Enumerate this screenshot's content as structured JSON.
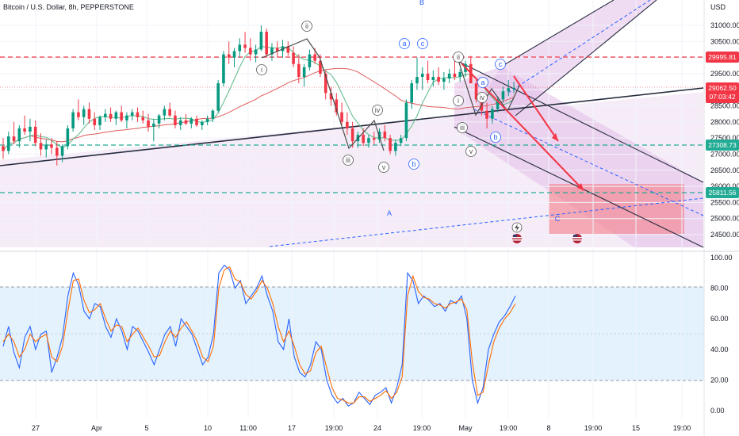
{
  "header": {
    "symbol_title": "Bitcoin / U.S. Dollar, 8h, PEPPERSTONE",
    "currency": "USD"
  },
  "chart_data": [
    {
      "type": "line",
      "ylim": [
        24100,
        31700
      ],
      "y_ticks": [
        24500,
        25000,
        25500,
        26000,
        26500,
        27000,
        27500,
        28000,
        28500,
        29000,
        29500,
        30000,
        30500,
        31000
      ],
      "x_ticks": [
        "27",
        "Apr",
        "5",
        "10",
        "11:00",
        "17",
        "19:00",
        "24",
        "19:00",
        "May",
        "19:00",
        "8",
        "19:00",
        "15",
        "19:00"
      ],
      "candles_approx": [
        [
          27250,
          27500,
          26850,
          27100
        ],
        [
          27100,
          27700,
          27000,
          27550
        ],
        [
          27550,
          28000,
          27300,
          27400
        ],
        [
          27400,
          27900,
          27200,
          27800
        ],
        [
          27800,
          28200,
          27600,
          27700
        ],
        [
          27700,
          28100,
          27400,
          27850
        ],
        [
          27850,
          28050,
          27250,
          27350
        ],
        [
          27350,
          27650,
          26950,
          27150
        ],
        [
          27150,
          27450,
          26900,
          27300
        ],
        [
          27300,
          27500,
          27000,
          27200
        ],
        [
          27200,
          27400,
          26650,
          26950
        ],
        [
          26950,
          27300,
          26750,
          27250
        ],
        [
          27250,
          27900,
          27150,
          27800
        ],
        [
          27800,
          28400,
          27700,
          28300
        ],
        [
          28300,
          28700,
          28050,
          28150
        ],
        [
          28150,
          28500,
          27900,
          28400
        ],
        [
          28400,
          28600,
          27950,
          28100
        ],
        [
          28100,
          28300,
          27750,
          27900
        ],
        [
          27900,
          28200,
          27750,
          28150
        ],
        [
          28150,
          28400,
          28000,
          28250
        ],
        [
          28250,
          28450,
          28000,
          28100
        ],
        [
          28100,
          28350,
          27900,
          28300
        ],
        [
          28300,
          28500,
          28000,
          28050
        ],
        [
          28050,
          28300,
          27800,
          28200
        ],
        [
          28200,
          28400,
          28050,
          28300
        ],
        [
          28300,
          28450,
          28000,
          28150
        ],
        [
          28150,
          28350,
          27950,
          28050
        ],
        [
          28050,
          28250,
          27700,
          27850
        ],
        [
          27850,
          28100,
          27400,
          27950
        ],
        [
          27950,
          28250,
          27800,
          28200
        ],
        [
          28200,
          28500,
          28050,
          28400
        ],
        [
          28400,
          28600,
          28150,
          28200
        ],
        [
          28200,
          28350,
          27800,
          27900
        ],
        [
          27900,
          28150,
          27750,
          28050
        ],
        [
          28050,
          28250,
          27900,
          27950
        ],
        [
          27950,
          28150,
          27800,
          28100
        ],
        [
          28100,
          28200,
          27850,
          27900
        ],
        [
          27900,
          28050,
          27750,
          28000
        ],
        [
          28000,
          28200,
          27900,
          28100
        ],
        [
          28100,
          28400,
          28000,
          28350
        ],
        [
          28350,
          29300,
          28300,
          29200
        ],
        [
          29200,
          30200,
          29100,
          30100
        ],
        [
          30100,
          30500,
          29800,
          30000
        ],
        [
          30000,
          30300,
          29700,
          30200
        ],
        [
          30200,
          30600,
          30000,
          30400
        ],
        [
          30400,
          30800,
          30150,
          30300
        ],
        [
          30300,
          30600,
          29900,
          30100
        ],
        [
          30100,
          30400,
          29850,
          30250
        ],
        [
          30250,
          31000,
          30200,
          30800
        ],
        [
          30800,
          30900,
          30000,
          30100
        ],
        [
          30100,
          30450,
          29900,
          30300
        ],
        [
          30300,
          30500,
          30000,
          30200
        ],
        [
          30200,
          30550,
          30000,
          30350
        ],
        [
          30350,
          30500,
          30050,
          30150
        ],
        [
          30150,
          30350,
          29700,
          29800
        ],
        [
          29800,
          30100,
          29200,
          29400
        ],
        [
          29400,
          29800,
          29100,
          29700
        ],
        [
          29700,
          30250,
          29600,
          30100
        ],
        [
          30100,
          30300,
          29800,
          29900
        ],
        [
          29900,
          30100,
          29400,
          29500
        ],
        [
          29500,
          29600,
          28700,
          28900
        ],
        [
          28900,
          29100,
          28500,
          28700
        ],
        [
          28700,
          28900,
          28200,
          28300
        ],
        [
          28300,
          28600,
          27900,
          28000
        ],
        [
          28000,
          28300,
          27600,
          27800
        ],
        [
          27800,
          28000,
          27200,
          27400
        ],
        [
          27400,
          27700,
          27200,
          27600
        ],
        [
          27600,
          27800,
          27250,
          27350
        ],
        [
          27350,
          27600,
          27200,
          27500
        ],
        [
          27500,
          27700,
          27300,
          27450
        ],
        [
          27450,
          27800,
          27350,
          27700
        ],
        [
          27700,
          27900,
          27400,
          27500
        ],
        [
          27500,
          27600,
          27000,
          27100
        ],
        [
          27100,
          27450,
          26950,
          27350
        ],
        [
          27350,
          27600,
          27250,
          27500
        ],
        [
          27500,
          28700,
          27400,
          28600
        ],
        [
          28600,
          29300,
          28400,
          29200
        ],
        [
          29200,
          30000,
          29000,
          29400
        ],
        [
          29400,
          29700,
          29000,
          29500
        ],
        [
          29500,
          29900,
          29200,
          29300
        ],
        [
          29300,
          29600,
          29100,
          29400
        ],
        [
          29400,
          29700,
          29150,
          29250
        ],
        [
          29250,
          29550,
          29000,
          29350
        ],
        [
          29350,
          29650,
          29200,
          29500
        ],
        [
          29500,
          29900,
          29300,
          29400
        ],
        [
          29400,
          29650,
          29250,
          29550
        ],
        [
          29550,
          29900,
          29400,
          29800
        ],
        [
          29800,
          30050,
          29500,
          29200
        ],
        [
          29200,
          29300,
          28600,
          28700
        ],
        [
          28700,
          28900,
          28200,
          28350
        ],
        [
          28350,
          28600,
          27800,
          28100
        ],
        [
          28100,
          28500,
          27950,
          28400
        ],
        [
          28400,
          28800,
          28300,
          28700
        ],
        [
          28700,
          29100,
          28600,
          28950
        ],
        [
          28950,
          29300,
          28800,
          29050
        ],
        [
          29050,
          29250,
          28900,
          29062
        ]
      ]
    },
    {
      "type": "line",
      "ylim": [
        0,
        100
      ],
      "y_ticks": [
        0,
        20,
        40,
        60,
        80,
        100
      ],
      "overbought": 80,
      "oversold": 20,
      "series": [
        {
          "values": [
            42,
            55,
            38,
            28,
            48,
            55,
            40,
            50,
            52,
            25,
            35,
            48,
            75,
            90,
            82,
            65,
            60,
            70,
            68,
            55,
            48,
            60,
            52,
            40,
            55,
            52,
            45,
            38,
            30,
            40,
            50,
            55,
            42,
            60,
            55,
            50,
            40,
            30,
            35,
            50,
            90,
            95,
            92,
            80,
            85,
            70,
            75,
            80,
            88,
            75,
            65,
            45,
            40,
            60,
            35,
            25,
            22,
            30,
            45,
            40,
            20,
            10,
            5,
            8,
            3,
            5,
            12,
            8,
            4,
            10,
            12,
            15,
            5,
            15,
            30,
            90,
            85,
            70,
            75,
            72,
            68,
            70,
            65,
            72,
            70,
            75,
            60,
            20,
            5,
            15,
            40,
            50,
            58,
            62,
            68,
            75
          ]
        },
        {
          "values": [
            45,
            50,
            45,
            35,
            40,
            50,
            45,
            48,
            50,
            35,
            32,
            42,
            65,
            85,
            86,
            72,
            64,
            66,
            70,
            60,
            52,
            56,
            55,
            45,
            50,
            54,
            48,
            42,
            35,
            36,
            45,
            52,
            48,
            54,
            58,
            52,
            45,
            35,
            32,
            42,
            80,
            92,
            94,
            86,
            84,
            76,
            73,
            78,
            85,
            80,
            70,
            55,
            45,
            52,
            42,
            30,
            24,
            26,
            38,
            42,
            28,
            15,
            8,
            7,
            5,
            5,
            9,
            9,
            6,
            8,
            10,
            13,
            8,
            12,
            22,
            75,
            88,
            78,
            74,
            73,
            70,
            69,
            67,
            70,
            71,
            73,
            66,
            32,
            10,
            12,
            30,
            45,
            54,
            60,
            64,
            70
          ]
        }
      ]
    }
  ],
  "right_axis": {
    "ticks_main": [
      "31000.00",
      "30500.00",
      "30000.00",
      "29500.00",
      "29000.00",
      "28500.00",
      "28000.00",
      "27500.00",
      "27000.00",
      "26500.00",
      "26000.00",
      "25500.00",
      "25000.00",
      "24500.00"
    ],
    "ticks_osc": [
      "100.00",
      "80.00",
      "60.00",
      "40.00",
      "20.00",
      "0.00"
    ]
  },
  "price_tags": {
    "resistance": {
      "label": "29995.81",
      "color": "#f23645"
    },
    "current": {
      "label": "29062.50",
      "countdown": "07:03:42",
      "color": "#f23645"
    },
    "support1": {
      "label": "27308.73",
      "color": "#22ab94"
    },
    "support2": {
      "label": "25811.56",
      "color": "#22ab94"
    }
  },
  "waves": {
    "i_1": "i",
    "ii_1": "ii",
    "iii_1": "iii",
    "iv_1": "iv",
    "v_1": "v",
    "a_1": "a",
    "b_1": "b",
    "c_1": "c",
    "i_2": "i",
    "ii_2": "ii",
    "iii_2": "iii",
    "iv_2": "iv",
    "v_2": "v",
    "a_2": "a",
    "b_2": "b",
    "c_2": "c",
    "big_A": "A",
    "big_B": "B",
    "big_C": "C"
  },
  "colors": {
    "bull": "#089981",
    "bear": "#f23645",
    "osc_k": "#2962ff",
    "osc_d": "#ff6d00",
    "fast_ma": "#5cb887",
    "slow_ma": "#e05b5b",
    "channel_fill": "#e1bee7",
    "target_zone": "#f5868f",
    "osc_band": "#e3f2fd"
  }
}
